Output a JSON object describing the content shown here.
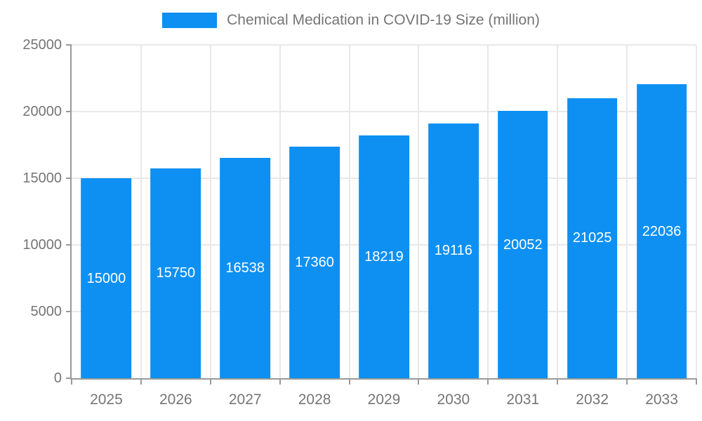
{
  "title": "Chemical Medication in COVID-19 Size (million)",
  "colors": {
    "bar": "#0d90f2",
    "bar_label_text": "#ffffff",
    "axis_text": "#757575",
    "axis_line": "#999999",
    "grid_line": "#e8e8e8",
    "background": "#ffffff"
  },
  "legend": {
    "position": "top",
    "items": [
      {
        "label": "Chemical Medication in COVID-19 Size (million)",
        "color": "#0d90f2"
      }
    ]
  },
  "chart_data": {
    "type": "bar",
    "title": "Chemical Medication in COVID-19 Size (million)",
    "categories": [
      "2025",
      "2026",
      "2027",
      "2028",
      "2029",
      "2030",
      "2031",
      "2032",
      "2033"
    ],
    "series": [
      {
        "name": "Chemical Medication in COVID-19 Size (million)",
        "values": [
          15000,
          15750,
          16538,
          17360,
          18219,
          19116,
          20052,
          21025,
          22036
        ]
      }
    ],
    "xlabel": "",
    "ylabel": "",
    "ylim": [
      0,
      25000
    ],
    "y_ticks": [
      0,
      5000,
      10000,
      15000,
      20000,
      25000
    ],
    "grid": true,
    "bar_label_position": "inside-middle",
    "legend_position": "top-center"
  }
}
